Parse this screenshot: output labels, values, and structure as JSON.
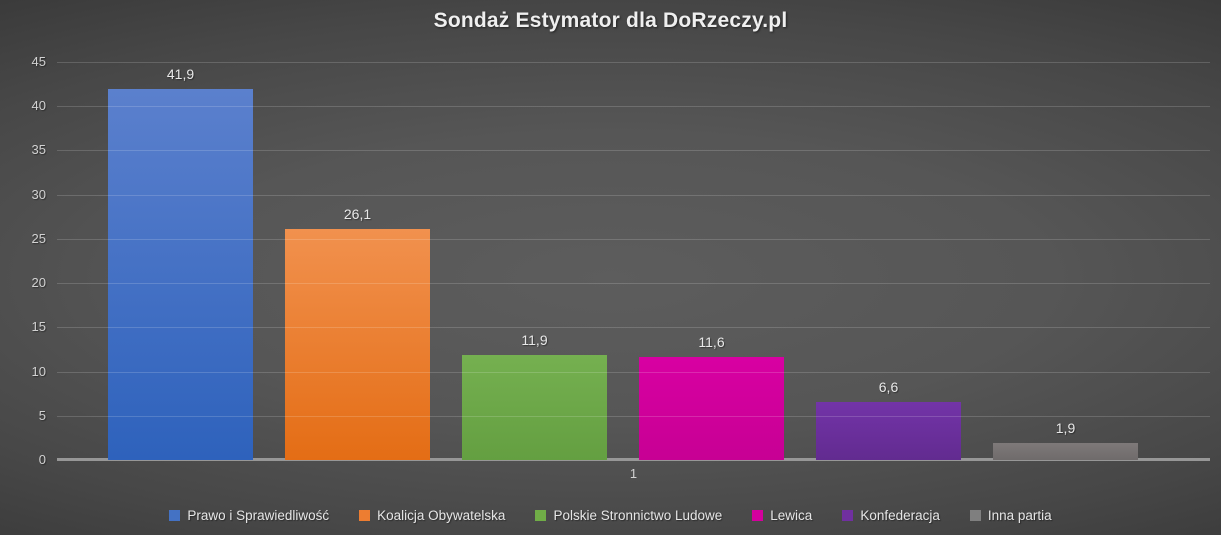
{
  "title": "Sondaż Estymator dla DoRzeczy.pl",
  "chart_data": {
    "type": "bar",
    "title": "Sondaż Estymator dla DoRzeczy.pl",
    "categories": [
      "1"
    ],
    "series": [
      {
        "name": "Prawo i Sprawiedliwość",
        "values": [
          41.9
        ],
        "label": "41,9",
        "color_top": "#5b80cd",
        "color_bottom": "#2e62bc",
        "legend_color": "#4472c4"
      },
      {
        "name": "Koalicja Obywatelska",
        "values": [
          26.1
        ],
        "label": "26,1",
        "color_top": "#f1914e",
        "color_bottom": "#e46d15",
        "legend_color": "#ed7d31"
      },
      {
        "name": "Polskie Stronnictwo Ludowe",
        "values": [
          11.9
        ],
        "label": "11,9",
        "color_top": "#75b050",
        "color_bottom": "#649f41",
        "legend_color": "#70ad47"
      },
      {
        "name": "Lewica",
        "values": [
          11.6
        ],
        "label": "11,6",
        "color_top": "#d800a2",
        "color_bottom": "#c70094",
        "legend_color": "#d4009d"
      },
      {
        "name": "Konfederacja",
        "values": [
          6.6
        ],
        "label": "6,6",
        "color_top": "#7334a8",
        "color_bottom": "#622b90",
        "legend_color": "#7030a0"
      },
      {
        "name": "Inna partia",
        "values": [
          1.9
        ],
        "label": "1,9",
        "color_top": "#7e7979",
        "color_bottom": "#6f6b6b",
        "legend_color": "#7f7f7f"
      }
    ],
    "ylim": [
      0,
      45
    ],
    "ytick_step": 5,
    "grid": "horizontal",
    "legend_position": "bottom",
    "decimal_separator": ","
  }
}
